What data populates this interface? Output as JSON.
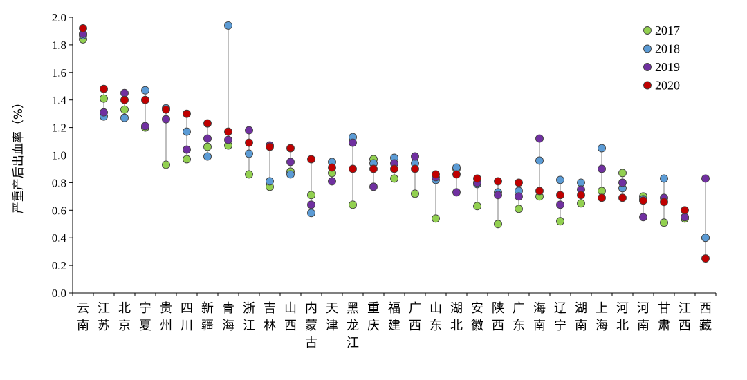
{
  "chart_data": {
    "type": "scatter",
    "title": "",
    "xlabel": "",
    "ylabel": "严重产后出血率（%）",
    "ylim": [
      0,
      2.0
    ],
    "yticks": [
      "0.0",
      "0.2",
      "0.4",
      "0.6",
      "0.8",
      "1.0",
      "1.2",
      "1.4",
      "1.6",
      "1.8",
      "2.0"
    ],
    "grid": false,
    "legend_position": "top-right",
    "categories": [
      "云南",
      "江苏",
      "北京",
      "宁夏",
      "贵州",
      "四川",
      "新疆",
      "青海",
      "浙江",
      "吉林",
      "山西",
      "内蒙古",
      "天津",
      "黑龙江",
      "重庆",
      "福建",
      "广西",
      "山东",
      "湖北",
      "安徽",
      "陕西",
      "广东",
      "海南",
      "辽宁",
      "湖南",
      "上海",
      "河北",
      "河南",
      "甘肃",
      "江西",
      "西藏"
    ],
    "series": [
      {
        "name": "2017",
        "color": "#92d050",
        "values": [
          1.84,
          1.41,
          1.33,
          1.2,
          0.93,
          0.97,
          1.06,
          1.07,
          0.86,
          0.77,
          0.88,
          0.71,
          0.87,
          0.64,
          0.97,
          0.83,
          0.72,
          0.54,
          0.9,
          0.63,
          0.5,
          0.61,
          0.7,
          0.52,
          0.65,
          0.74,
          0.87,
          0.7,
          0.51,
          0.54,
          0.4
        ]
      },
      {
        "name": "2018",
        "color": "#5b9bd5",
        "values": [
          1.87,
          1.28,
          1.27,
          1.47,
          1.34,
          1.17,
          0.99,
          1.94,
          1.01,
          0.81,
          0.86,
          0.58,
          0.95,
          1.13,
          0.94,
          0.98,
          0.94,
          0.82,
          0.91,
          0.79,
          0.73,
          0.74,
          0.96,
          0.82,
          0.8,
          1.05,
          0.76,
          0.68,
          0.83,
          0.55,
          0.4
        ]
      },
      {
        "name": "2019",
        "color": "#7030a0",
        "values": [
          1.88,
          1.31,
          1.45,
          1.21,
          1.26,
          1.04,
          1.12,
          1.11,
          1.18,
          1.07,
          0.95,
          0.64,
          0.81,
          1.09,
          0.77,
          0.94,
          0.99,
          0.84,
          0.73,
          0.8,
          0.71,
          0.7,
          1.12,
          0.64,
          0.75,
          0.9,
          0.8,
          0.55,
          0.69,
          0.55,
          0.83
        ]
      },
      {
        "name": "2020",
        "color": "#c00000",
        "values": [
          1.92,
          1.48,
          1.4,
          1.4,
          1.33,
          1.3,
          1.23,
          1.17,
          1.09,
          1.06,
          1.05,
          0.97,
          0.91,
          0.9,
          0.9,
          0.9,
          0.9,
          0.86,
          0.86,
          0.83,
          0.81,
          0.8,
          0.74,
          0.71,
          0.71,
          0.69,
          0.69,
          0.67,
          0.66,
          0.6,
          0.25
        ]
      }
    ]
  }
}
